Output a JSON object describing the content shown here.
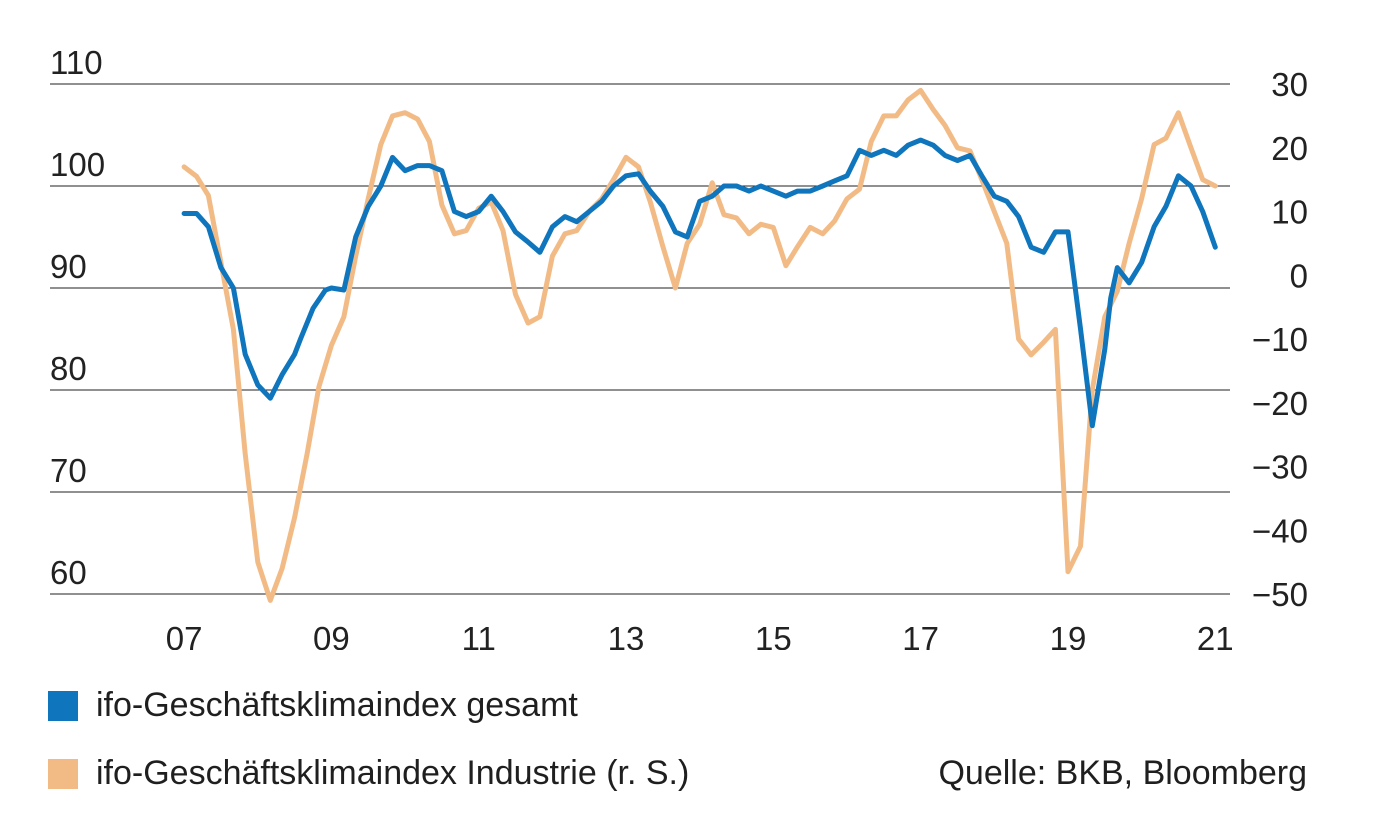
{
  "colors": {
    "gesamt": "#0f75bc",
    "industrie": "#f2bb85",
    "grid": "#222222",
    "text": "#1f1f1f"
  },
  "legend": [
    {
      "label": "ifo-Geschäftsklimaindex gesamt",
      "color": "#0f75bc"
    },
    {
      "label": "ifo-Geschäftsklimaindex Industrie (r. S.)",
      "color": "#f2bb85"
    }
  ],
  "source": "Quelle: BKB, Bloomberg",
  "chart_data": {
    "type": "line",
    "x_ticks": [
      {
        "value": 2007,
        "label": "07"
      },
      {
        "value": 2009,
        "label": "09"
      },
      {
        "value": 2011,
        "label": "11"
      },
      {
        "value": 2013,
        "label": "13"
      },
      {
        "value": 2015,
        "label": "15"
      },
      {
        "value": 2017,
        "label": "17"
      },
      {
        "value": 2019,
        "label": "19"
      },
      {
        "value": 2021,
        "label": "21"
      }
    ],
    "xlim": [
      2006.7,
      2021.2
    ],
    "left_axis": {
      "ylim": [
        60,
        110
      ],
      "ticks": [
        60,
        70,
        80,
        90,
        100,
        110
      ],
      "tick_labels": [
        "60",
        "70",
        "80",
        "90",
        "100",
        "110"
      ]
    },
    "right_axis": {
      "ylim": [
        -50,
        30
      ],
      "ticks": [
        -50,
        -40,
        -30,
        -20,
        -10,
        0,
        10,
        20,
        30
      ],
      "tick_labels": [
        "−50",
        "−40",
        "−30",
        "−20",
        "−10",
        "0",
        "10",
        "20",
        "30"
      ]
    },
    "grid": "horizontal",
    "legend_position": "bottom-left",
    "series": [
      {
        "name": "ifo-Geschäftsklimaindex gesamt",
        "axis": "left",
        "color": "#0f75bc",
        "x": [
          2007.0,
          2007.17,
          2007.33,
          2007.5,
          2007.67,
          2007.83,
          2008.0,
          2008.17,
          2008.33,
          2008.5,
          2008.58,
          2008.75,
          2008.92,
          2009.0,
          2009.17,
          2009.33,
          2009.5,
          2009.67,
          2009.83,
          2010.0,
          2010.17,
          2010.33,
          2010.5,
          2010.67,
          2010.83,
          2011.0,
          2011.17,
          2011.33,
          2011.5,
          2011.67,
          2011.83,
          2012.0,
          2012.17,
          2012.33,
          2012.5,
          2012.67,
          2012.83,
          2013.0,
          2013.17,
          2013.33,
          2013.5,
          2013.67,
          2013.83,
          2014.0,
          2014.17,
          2014.33,
          2014.5,
          2014.67,
          2014.83,
          2015.0,
          2015.17,
          2015.33,
          2015.5,
          2015.67,
          2015.83,
          2016.0,
          2016.17,
          2016.33,
          2016.5,
          2016.67,
          2016.83,
          2017.0,
          2017.17,
          2017.33,
          2017.5,
          2017.67,
          2017.83,
          2018.0,
          2018.17,
          2018.33,
          2018.5,
          2018.67,
          2018.83,
          2019.0,
          2019.17,
          2019.33,
          2019.5,
          2019.58,
          2019.67,
          2019.83,
          2020.0,
          2020.17,
          2020.33,
          2020.5,
          2020.67,
          2020.83,
          2021.0
        ],
        "values": [
          97.3,
          97.3,
          96.0,
          92.0,
          90.0,
          83.5,
          80.5,
          79.2,
          81.5,
          83.5,
          85.0,
          88.0,
          89.8,
          90.0,
          89.8,
          95.0,
          98.0,
          100.0,
          102.8,
          101.5,
          102.0,
          102.0,
          101.5,
          97.5,
          97.0,
          97.5,
          99.0,
          97.5,
          95.5,
          94.5,
          93.5,
          96.0,
          97.0,
          96.5,
          97.5,
          98.5,
          100.0,
          101.0,
          101.2,
          99.5,
          98.0,
          95.5,
          95.0,
          98.5,
          99.0,
          100.0,
          100.0,
          99.5,
          100.0,
          99.5,
          99.0,
          99.5,
          99.5,
          100.0,
          100.5,
          101.0,
          103.5,
          103.0,
          103.5,
          103.0,
          104.0,
          104.5,
          104.0,
          103.0,
          102.5,
          103.0,
          101.0,
          99.0,
          98.5,
          97.0,
          94.0,
          93.5,
          95.5,
          95.5,
          86.0,
          76.5,
          84.0,
          89.0,
          92.0,
          90.5,
          92.5,
          96.0,
          98.0,
          101.0,
          100.0,
          97.5,
          94.0
        ]
      },
      {
        "name": "ifo-Geschäftsklimaindex Industrie (r. S.)",
        "axis": "right",
        "color": "#f2bb85",
        "x": [
          2007.0,
          2007.17,
          2007.33,
          2007.5,
          2007.67,
          2007.83,
          2008.0,
          2008.17,
          2008.33,
          2008.5,
          2008.67,
          2008.83,
          2009.0,
          2009.17,
          2009.33,
          2009.5,
          2009.67,
          2009.83,
          2010.0,
          2010.17,
          2010.33,
          2010.5,
          2010.67,
          2010.83,
          2011.0,
          2011.17,
          2011.33,
          2011.5,
          2011.67,
          2011.83,
          2012.0,
          2012.17,
          2012.33,
          2012.5,
          2012.67,
          2012.83,
          2013.0,
          2013.17,
          2013.33,
          2013.5,
          2013.67,
          2013.83,
          2014.0,
          2014.17,
          2014.33,
          2014.5,
          2014.67,
          2014.83,
          2015.0,
          2015.17,
          2015.33,
          2015.5,
          2015.67,
          2015.83,
          2016.0,
          2016.17,
          2016.33,
          2016.5,
          2016.67,
          2016.83,
          2017.0,
          2017.17,
          2017.33,
          2017.5,
          2017.67,
          2017.83,
          2018.0,
          2018.17,
          2018.33,
          2018.5,
          2018.67,
          2018.83,
          2019.0,
          2019.17,
          2019.33,
          2019.5,
          2019.67,
          2019.83,
          2020.0,
          2020.17,
          2020.33,
          2020.5,
          2020.67,
          2020.83,
          2021.0
        ],
        "values": [
          17.0,
          15.5,
          12.5,
          2.0,
          -8.5,
          -28.0,
          -45.0,
          -51.0,
          -46.0,
          -38.0,
          -28.0,
          -17.5,
          -11.0,
          -6.5,
          3.0,
          12.0,
          20.5,
          25.0,
          25.5,
          24.5,
          21.0,
          11.0,
          6.5,
          7.0,
          10.5,
          11.5,
          7.0,
          -3.0,
          -7.5,
          -6.5,
          3.0,
          6.5,
          7.0,
          10.0,
          12.0,
          15.0,
          18.5,
          17.0,
          11.5,
          4.5,
          -2.0,
          5.0,
          8.0,
          14.5,
          9.5,
          9.0,
          6.5,
          8.0,
          7.5,
          1.5,
          4.5,
          7.5,
          6.5,
          8.5,
          12.0,
          13.5,
          21.0,
          25.0,
          25.0,
          27.5,
          29.0,
          26.0,
          23.5,
          20.0,
          19.5,
          15.0,
          10.0,
          5.0,
          -10.0,
          -12.5,
          -10.5,
          -8.5,
          -46.5,
          -42.5,
          -18.0,
          -6.5,
          -2.5,
          5.0,
          12.0,
          20.5,
          21.5,
          25.5,
          20.0,
          15.0,
          14.0
        ]
      }
    ]
  }
}
